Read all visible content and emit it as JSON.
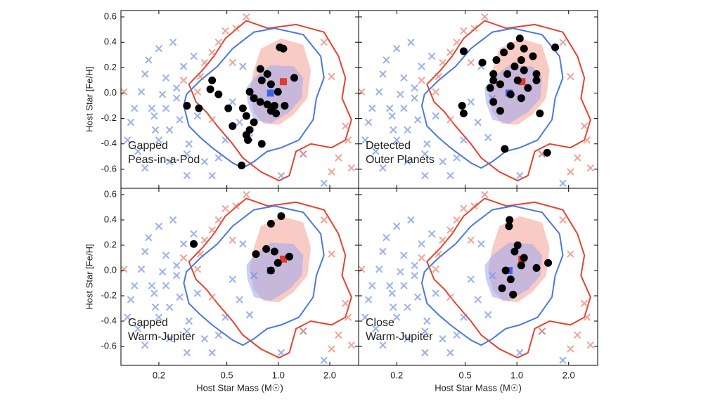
{
  "shared": {
    "x_label": "Host Star Mass (M☉)",
    "y_label": "Host Star [Fe/H]",
    "xscale": "log",
    "xlim": [
      0.12,
      2.95
    ],
    "ylim": [
      -0.75,
      0.65
    ],
    "xticks": [
      0.2,
      0.5,
      {
        "value": 1,
        "label": "1.0"
      },
      {
        "value": 2,
        "label": "2.0"
      }
    ],
    "yticks": [
      0.6,
      0.4,
      0.2,
      {
        "value": 0,
        "label": "0.0"
      },
      -0.2,
      -0.4,
      -0.6
    ],
    "contours": [
      {
        "color": "#f2a093",
        "filled": true,
        "x": [
          0.79,
          1.04,
          1.4,
          1.55,
          1.48,
          1.23,
          1.01,
          0.82,
          0.72,
          0.68,
          0.72
        ],
        "y": [
          0.35,
          0.43,
          0.38,
          0.18,
          -0.04,
          -0.17,
          -0.25,
          -0.24,
          -0.15,
          0.01,
          0.18
        ]
      },
      {
        "color": "#9ca8ee",
        "filled": true,
        "x": [
          0.72,
          0.9,
          1.23,
          1.4,
          1.37,
          1.16,
          0.9,
          0.72,
          0.66,
          0.65
        ],
        "y": [
          0.12,
          0.22,
          0.21,
          0.12,
          -0.04,
          -0.15,
          -0.24,
          -0.21,
          -0.07,
          0.04
        ]
      },
      {
        "color": "#e4432f",
        "filled": false,
        "x": [
          0.49,
          0.65,
          0.87,
          1.27,
          1.85,
          2.25,
          2.47,
          2.36,
          2.68,
          2.47,
          2.05,
          1.55,
          1.27,
          1.16,
          1.01,
          0.79,
          0.62,
          0.54,
          0.44,
          0.38,
          0.33,
          0.3,
          0.36,
          0.42
        ],
        "y": [
          0.43,
          0.57,
          0.51,
          0.54,
          0.48,
          0.29,
          0.12,
          -0.04,
          -0.21,
          -0.37,
          -0.43,
          -0.4,
          -0.46,
          -0.65,
          -0.69,
          -0.62,
          -0.51,
          -0.4,
          -0.26,
          -0.15,
          -0.07,
          0.07,
          0.18,
          0.29
        ]
      },
      {
        "color": "#4a78e0",
        "filled": false,
        "x": [
          0.54,
          0.72,
          0.95,
          1.4,
          1.77,
          1.85,
          1.67,
          1.6,
          1.32,
          1.04,
          0.86,
          0.72,
          0.62,
          0.54,
          0.41,
          0.35,
          0.3,
          0.28,
          0.29,
          0.35,
          0.44
        ],
        "y": [
          0.35,
          0.48,
          0.51,
          0.46,
          0.29,
          0.12,
          -0.04,
          -0.21,
          -0.37,
          -0.43,
          -0.46,
          -0.54,
          -0.59,
          -0.55,
          -0.43,
          -0.35,
          -0.26,
          -0.1,
          -0.01,
          0.1,
          0.21
        ]
      }
    ],
    "crosses": [
      {
        "color": "#6f8ee8",
        "x": [
          0.131,
          0.144,
          0.158,
          0.166,
          0.174,
          0.182,
          0.188,
          0.2,
          0.21,
          0.22,
          0.231,
          0.242,
          0.254,
          0.265,
          0.279,
          0.292,
          0.3,
          0.32,
          0.337,
          0.37,
          0.41,
          0.447,
          0.49,
          0.593,
          0.68,
          0.72,
          0.54,
          0.254,
          0.191,
          0.151,
          0.137,
          0.166,
          0.231,
          0.292,
          1.04,
          1.4,
          1.85,
          0.62,
          0.2,
          0.22
        ],
        "y": [
          -0.37,
          -0.12,
          0.01,
          0.15,
          0.26,
          -0.12,
          -0.18,
          0.35,
          -0.01,
          0.12,
          -0.29,
          0.4,
          -0.04,
          -0.21,
          0.21,
          -0.48,
          -0.4,
          0.29,
          -0.18,
          -0.54,
          -0.65,
          -0.51,
          -0.37,
          -0.23,
          -0.35,
          -0.04,
          -0.07,
          0.04,
          -0.29,
          -0.46,
          -0.23,
          -0.59,
          -0.54,
          -0.65,
          -0.65,
          -0.48,
          -0.71,
          0.21,
          -0.37,
          -0.12
        ]
      },
      {
        "color": "#ec7a6c",
        "x": [
          0.37,
          0.41,
          0.447,
          0.49,
          0.565,
          0.65,
          0.35,
          0.125,
          2.56,
          2.25,
          2.05,
          2.68,
          2.47,
          2.05,
          1.85,
          1.4,
          0.41,
          0.337,
          0.279,
          0.54
        ],
        "y": [
          0.24,
          0.32,
          0.4,
          0.49,
          0.51,
          0.6,
          0.13,
          0.01,
          -0.37,
          -0.51,
          -0.62,
          -0.59,
          -0.26,
          0.13,
          0.4,
          -0.48,
          -0.21,
          0.01,
          0.1,
          0.24
        ]
      }
    ],
    "markers": [
      {
        "color": "#3b66e8",
        "x": 0.9,
        "y": 0.0
      },
      {
        "color": "#e5392a",
        "x": 1.07,
        "y": 0.09
      }
    ]
  },
  "chart_data": [
    {
      "type": "scatter",
      "label": [
        "Gapped",
        "Peas-in-a-Pod"
      ],
      "color": "#000000",
      "x": [
        1.02,
        1.07,
        0.785,
        0.863,
        0.8,
        0.906,
        0.995,
        1.24,
        0.68,
        0.72,
        0.62,
        0.65,
        0.785,
        0.863,
        0.95,
        1.09,
        0.906,
        0.97,
        0.72,
        0.68,
        0.65,
        0.664,
        0.8,
        0.54,
        0.51,
        0.41,
        0.447,
        0.4,
        0.292,
        0.343,
        0.61
      ],
      "y": [
        0.36,
        0.35,
        0.19,
        0.15,
        0.1,
        0.07,
        0.01,
        0.12,
        0.01,
        -0.04,
        -0.12,
        -0.18,
        -0.07,
        -0.09,
        -0.1,
        -0.1,
        -0.14,
        -0.16,
        -0.23,
        -0.29,
        -0.33,
        -0.37,
        -0.4,
        -0.26,
        -0.12,
        0.1,
        -0.01,
        0.03,
        -0.1,
        -0.12,
        -0.57
      ]
    },
    {
      "type": "scatter",
      "label": [
        "Detected",
        "Outer Planets"
      ],
      "color": "#000000",
      "x": [
        0.49,
        1.04,
        0.84,
        0.92,
        1.1,
        0.76,
        1.06,
        1.24,
        0.97,
        0.63,
        0.73,
        0.88,
        1.1,
        1.3,
        0.8,
        1.01,
        1.16,
        0.92,
        1.3,
        0.7,
        0.73,
        1.06,
        0.8,
        1.36,
        0.48,
        0.49,
        1.67,
        0.85,
        1.5,
        0.73
      ],
      "y": [
        0.33,
        0.43,
        0.32,
        0.37,
        0.35,
        0.26,
        0.26,
        0.29,
        0.21,
        0.24,
        0.15,
        0.15,
        0.18,
        0.15,
        0.07,
        0.1,
        0.04,
        -0.01,
        0.1,
        0.04,
        -0.07,
        -0.04,
        -0.14,
        -0.16,
        -0.1,
        -0.16,
        0.36,
        -0.44,
        -0.47,
        0.1
      ]
    },
    {
      "type": "scatter",
      "label": [
        "Gapped",
        "Warm-Jupiter"
      ],
      "color": "#000000",
      "x": [
        0.32,
        1.04,
        0.906,
        0.74,
        0.85,
        0.95,
        1.16,
        0.995,
        0.906
      ],
      "y": [
        0.21,
        0.43,
        0.37,
        0.13,
        0.17,
        0.15,
        0.11,
        0.06,
        0.0
      ]
    },
    {
      "type": "scatter",
      "label": [
        "Close",
        "Warm-Jupiter"
      ],
      "color": "#000000",
      "x": [
        0.906,
        0.9,
        1.01,
        0.97,
        1.1,
        1.06,
        1.3,
        1.52,
        0.86,
        0.92,
        0.82,
        0.95
      ],
      "y": [
        0.4,
        0.35,
        0.2,
        0.15,
        0.1,
        0.04,
        0.02,
        0.06,
        0.0,
        -0.07,
        -0.14,
        -0.19
      ]
    }
  ]
}
